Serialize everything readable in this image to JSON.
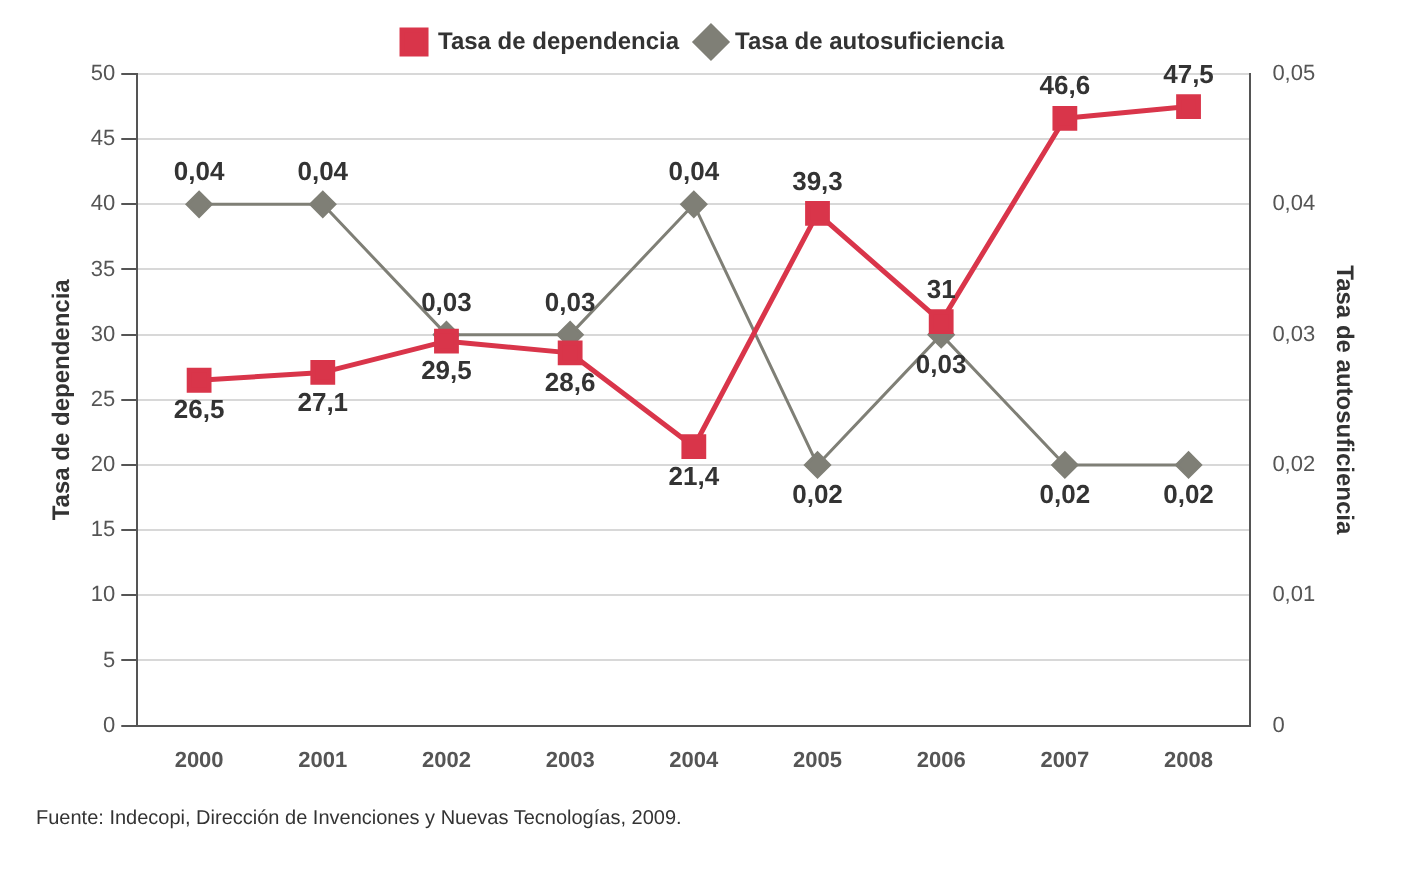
{
  "chart_data": {
    "type": "line",
    "categories": [
      "2000",
      "2001",
      "2002",
      "2003",
      "2004",
      "2005",
      "2006",
      "2007",
      "2008"
    ],
    "series": [
      {
        "name": "Tasa de dependencia",
        "color": "#d9354a",
        "marker": "square",
        "values": [
          26.5,
          27.1,
          29.5,
          28.6,
          21.4,
          39.3,
          31,
          46.6,
          47.5
        ],
        "value_labels": [
          "26,5",
          "27,1",
          "29,5",
          "28,6",
          "21,4",
          "39,3",
          "31",
          "46,6",
          "47,5"
        ]
      },
      {
        "name": "Tasa de autosuficiencia",
        "color": "#7f7f76",
        "marker": "diamond",
        "axis": "y2",
        "values": [
          0.04,
          0.04,
          0.03,
          0.03,
          0.04,
          0.02,
          0.03,
          0.02,
          0.02
        ],
        "value_labels": [
          "0,04",
          "0,04",
          "0,03",
          "0,03",
          "0,04",
          "0,02",
          "0,03",
          "0,02",
          "0,02"
        ]
      }
    ],
    "ylabel": "Tasa de dependencia",
    "y2label": "Tasa de autosuficiencia",
    "ylim": [
      0,
      50
    ],
    "yticks": [
      0,
      5,
      10,
      15,
      20,
      25,
      30,
      35,
      40,
      45,
      50
    ],
    "y2lim": [
      0,
      0.05
    ],
    "y2ticks": [
      0,
      {
        "value": 0.01,
        "label": "0,01"
      },
      {
        "value": 0.02,
        "label": "0,02"
      },
      {
        "value": 0.03,
        "label": "0,03"
      },
      {
        "value": 0.04,
        "label": "0,04"
      },
      {
        "value": 0.05,
        "label": "0,05"
      }
    ],
    "grid": "y",
    "legend": "top",
    "line_style": "solid",
    "annotations": [
      "Fuente: Indecopi, Dirección de Invenciones y Nuevas Tecnologías, 2009."
    ]
  }
}
